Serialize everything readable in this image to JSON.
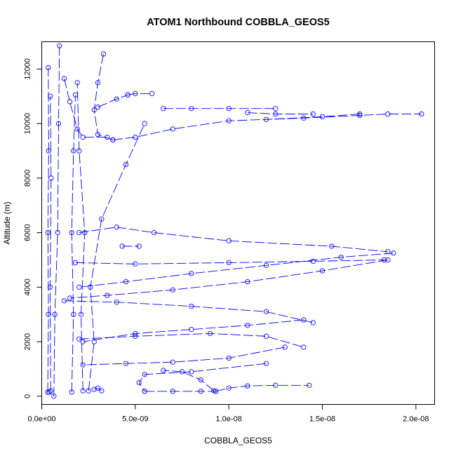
{
  "chart_data": {
    "type": "scatter",
    "title": "ATOM1 Northbound COBBLA_GEOS5",
    "xlabel": "COBBLA_GEOS5",
    "ylabel": "Altitude (m)",
    "xlim": [
      0,
      2.1e-08
    ],
    "ylim": [
      -300,
      13000
    ],
    "x_ticks": [
      {
        "value": 0,
        "label": "0.0e+00"
      },
      {
        "value": 5e-09,
        "label": "5.0e-09"
      },
      {
        "value": 1e-08,
        "label": "1.0e-08"
      },
      {
        "value": 1.5e-08,
        "label": "1.5e-08"
      },
      {
        "value": 2e-08,
        "label": "2.0e-08"
      }
    ],
    "y_ticks": [
      {
        "value": 0,
        "label": "0"
      },
      {
        "value": 2000,
        "label": "2000"
      },
      {
        "value": 4000,
        "label": "4000"
      },
      {
        "value": 6000,
        "label": "6000"
      },
      {
        "value": 8000,
        "label": "8000"
      },
      {
        "value": 10000,
        "label": "10000"
      },
      {
        "value": 12000,
        "label": "12000"
      }
    ],
    "grid": false,
    "marker": "open-circle",
    "color": "#0000ff",
    "series": [
      {
        "segments": [
          [
            [
              3.2e-10,
              150
            ],
            [
              3.6e-10,
              3000
            ],
            [
              3.3e-10,
              6000
            ],
            [
              3.7e-10,
              9000
            ],
            [
              3.5e-10,
              12050
            ]
          ],
          [
            [
              4.8e-10,
              200
            ],
            [
              4.5e-10,
              4000
            ],
            [
              5e-10,
              8000
            ],
            [
              4.6e-10,
              11000
            ]
          ],
          [
            [
              9.5e-10,
              12850
            ],
            [
              9e-10,
              10000
            ],
            [
              8.5e-10,
              6000
            ],
            [
              7e-10,
              3000
            ],
            [
              6.5e-10,
              0
            ],
            [
              4e-10,
              150
            ]
          ]
        ]
      },
      {
        "segments": [
          [
            [
              1.6e-09,
              150
            ],
            [
              1.7e-09,
              3000
            ],
            [
              1.6e-09,
              6000
            ],
            [
              1.7e-09,
              9000
            ],
            [
              1.8e-09,
              11050
            ]
          ],
          [
            [
              1.2e-09,
              11650
            ],
            [
              1.5e-09,
              10800
            ],
            [
              1.9e-09,
              9800
            ],
            [
              2.2e-09,
              9500
            ],
            [
              3.5e-09,
              9500
            ]
          ],
          [
            [
              3.3e-09,
              12550
            ],
            [
              3e-09,
              11500
            ],
            [
              2.8e-09,
              10500
            ],
            [
              3e-09,
              9600
            ],
            [
              3.8e-09,
              9400
            ]
          ]
        ]
      },
      {
        "segments": [
          [
            [
              2.2e-09,
              200
            ],
            [
              2.1e-09,
              3000
            ],
            [
              2.3e-09,
              6000
            ],
            [
              2e-09,
              9000
            ],
            [
              1.9e-09,
              11500
            ]
          ],
          [
            [
              2.5e-09,
              200
            ],
            [
              2.8e-09,
              2000
            ],
            [
              2.6e-09,
              4000
            ],
            [
              3.2e-09,
              6500
            ],
            [
              4.5e-09,
              8500
            ],
            [
              5.5e-09,
              10000
            ]
          ],
          [
            [
              2.8e-09,
              250
            ],
            [
              3e-09,
              300
            ],
            [
              3.2e-09,
              200
            ]
          ]
        ]
      },
      {
        "segments": [
          [
            [
              3.8e-09,
              9400
            ],
            [
              5e-09,
              9500
            ],
            [
              7e-09,
              9800
            ],
            [
              1e-08,
              10100
            ],
            [
              1.4e-08,
              10200
            ],
            [
              1.7e-08,
              10300
            ],
            [
              1.85e-08,
              10350
            ],
            [
              2.03e-08,
              10350
            ]
          ],
          [
            [
              1.7e-08,
              10350
            ],
            [
              1.5e-08,
              10250
            ],
            [
              1.2e-08,
              10150
            ]
          ]
        ]
      },
      {
        "segments": [
          [
            [
              4.6e-09,
              11050
            ],
            [
              5e-09,
              11100
            ],
            [
              5.9e-09,
              11100
            ]
          ],
          [
            [
              3e-09,
              10600
            ],
            [
              4e-09,
              10900
            ],
            [
              4.6e-09,
              11050
            ]
          ],
          [
            [
              6.5e-09,
              10550
            ],
            [
              8e-09,
              10550
            ],
            [
              1e-08,
              10550
            ],
            [
              1.25e-08,
              10550
            ]
          ],
          [
            [
              1.1e-08,
              10400
            ],
            [
              1.25e-08,
              10350
            ],
            [
              1.45e-08,
              10350
            ]
          ]
        ]
      },
      {
        "segments": [
          [
            [
              4.3e-09,
              5500
            ],
            [
              5.2e-09,
              5500
            ]
          ],
          [
            [
              2e-09,
              6000
            ],
            [
              4e-09,
              6200
            ],
            [
              6e-09,
              6000
            ],
            [
              1e-08,
              5700
            ],
            [
              1.55e-08,
              5500
            ],
            [
              1.85e-08,
              5300
            ]
          ],
          [
            [
              1.88e-08,
              5250
            ],
            [
              1.6e-08,
              5100
            ],
            [
              1.2e-08,
              4800
            ],
            [
              8e-09,
              4500
            ],
            [
              4.5e-09,
              4200
            ],
            [
              2e-09,
              4000
            ]
          ]
        ]
      },
      {
        "segments": [
          [
            [
              1.8e-09,
              4900
            ],
            [
              5e-09,
              4850
            ],
            [
              1e-08,
              4900
            ],
            [
              1.45e-08,
              4950
            ],
            [
              1.83e-08,
              5000
            ]
          ],
          [
            [
              1.85e-08,
              5000
            ],
            [
              1.5e-08,
              4600
            ],
            [
              1.1e-08,
              4200
            ],
            [
              7e-09,
              3900
            ],
            [
              3.5e-09,
              3700
            ],
            [
              1.5e-09,
              3600
            ]
          ]
        ]
      },
      {
        "segments": [
          [
            [
              1.2e-09,
              3500
            ],
            [
              4e-09,
              3450
            ],
            [
              8e-09,
              3300
            ],
            [
              1.2e-08,
              3100
            ],
            [
              1.45e-08,
              2700
            ]
          ],
          [
            [
              1.4e-08,
              2800
            ],
            [
              1.1e-08,
              2600
            ],
            [
              8e-09,
              2450
            ],
            [
              5e-09,
              2300
            ],
            [
              2.2e-09,
              2000
            ]
          ],
          [
            [
              2e-09,
              2100
            ],
            [
              5e-09,
              2200
            ],
            [
              9e-09,
              2300
            ],
            [
              1.2e-08,
              2200
            ],
            [
              1.4e-08,
              1800
            ]
          ]
        ]
      },
      {
        "segments": [
          [
            [
              1.3e-08,
              1800
            ],
            [
              1e-08,
              1400
            ],
            [
              7e-09,
              1250
            ],
            [
              4.5e-09,
              1200
            ],
            [
              2.2e-09,
              1150
            ]
          ],
          [
            [
              1.2e-08,
              1200
            ],
            [
              8e-09,
              900
            ],
            [
              5.5e-09,
              800
            ],
            [
              5.2e-09,
              500
            ],
            [
              5.5e-09,
              180
            ]
          ],
          [
            [
              5.5e-09,
              180
            ],
            [
              7e-09,
              180
            ],
            [
              8.5e-09,
              180
            ],
            [
              9.3e-09,
              180
            ]
          ]
        ]
      },
      {
        "segments": [
          [
            [
              9.3e-09,
              180
            ],
            [
              1e-08,
              300
            ],
            [
              1.1e-08,
              380
            ],
            [
              1.25e-08,
              400
            ],
            [
              1.43e-08,
              400
            ]
          ],
          [
            [
              9.2e-09,
              200
            ],
            [
              8.5e-09,
              600
            ],
            [
              7.5e-09,
              900
            ],
            [
              6.5e-09,
              950
            ]
          ]
        ]
      }
    ]
  }
}
